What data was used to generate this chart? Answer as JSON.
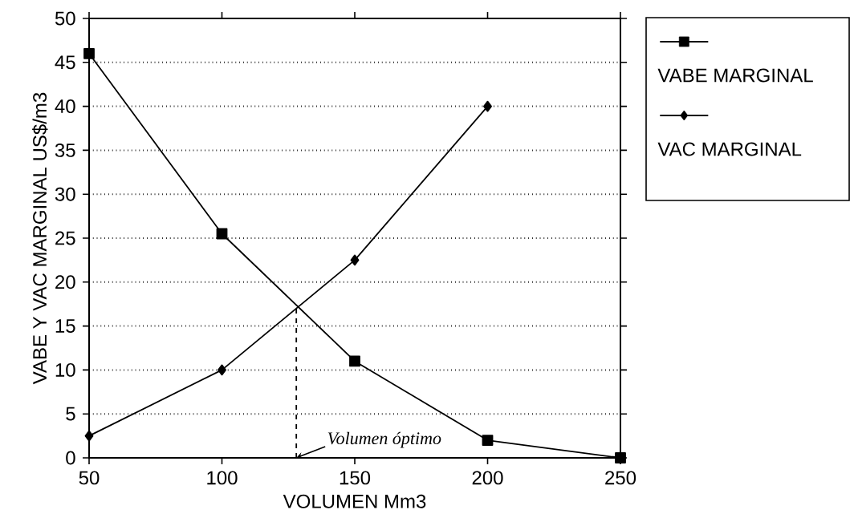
{
  "chart_data": {
    "type": "line",
    "xlabel": "VOLUMEN Mm3",
    "ylabel": "VABE Y VAC MARGINAL US$/m3",
    "x": [
      50,
      100,
      150,
      200,
      250
    ],
    "series": [
      {
        "name": "VABE MARGINAL",
        "color": "#000000",
        "marker": "square",
        "values": [
          46,
          25.5,
          11,
          2,
          0
        ]
      },
      {
        "name": "VAC MARGINAL",
        "color": "#000000",
        "marker": "diamond",
        "x": [
          50,
          100,
          150,
          200
        ],
        "values": [
          2.5,
          10,
          22.5,
          40
        ]
      },
      {
        "color": "#000000",
        "marker": "none",
        "line_style": "dashed",
        "x": [
          128,
          128
        ],
        "values": [
          0,
          17.2
        ]
      }
    ],
    "annotations": [
      {
        "text": "Volumen óptimo",
        "x": 128,
        "y": 0
      }
    ],
    "xlim": [
      50,
      250
    ],
    "ylim": [
      0,
      50
    ],
    "xticks": [
      50,
      100,
      150,
      200,
      250
    ],
    "yticks": [
      0,
      5,
      10,
      15,
      20,
      25,
      30,
      35,
      40,
      45,
      50
    ],
    "grid": "y",
    "legend": "top right",
    "line_style": "solid"
  }
}
